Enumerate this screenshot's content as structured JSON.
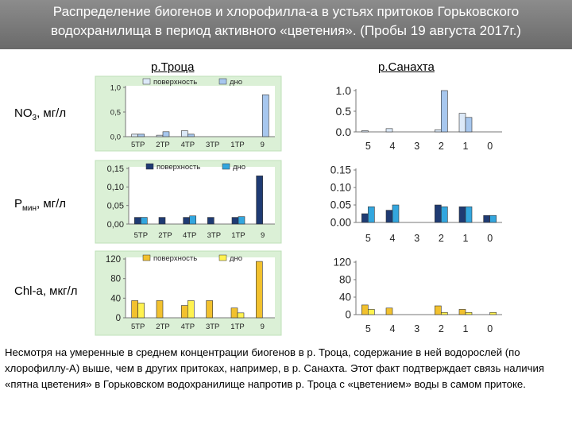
{
  "header": {
    "title_line1": "Распределение биогенов и хлорофилла-а в устьях притоков Горьковского",
    "title_line2": "водохранилища в период активного «цветения». (Пробы 19 августа 2017г.)"
  },
  "rivers": {
    "left": "р.Троца",
    "right": "р.Санахта"
  },
  "rows": {
    "no3": {
      "main": "NO",
      "sub": "3",
      "unit": ", мг/л"
    },
    "pmin": {
      "main": "P",
      "sub": "мин",
      "unit": ", мг/л"
    },
    "chla": {
      "main": "Chl-a, мкг/л"
    }
  },
  "caption": "Несмотря на умеренные в среднем концентрации биогенов в р. Троца, содержание в ней водорослей (по хлорофиллу-А) выше, чем в других притоках, например, в р. Санахта. Этот факт подтверждает связь наличия «пятна цветения» в Горьковском водохранилище напротив р. Троца с «цветением» воды в самом притоке.",
  "colors": {
    "no3": {
      "surface": "#dce9f8",
      "bottom": "#a7c7ee"
    },
    "pmin": {
      "surface": "#1f3b73",
      "bottom": "#33a6de"
    },
    "chla": {
      "surface": "#f2c12e",
      "bottom": "#fff24f"
    },
    "troca_panel_bg": "#dbf0d6",
    "troca_panel_border": "#bfe0b8"
  },
  "chart_data": [
    {
      "id": "no3-troca",
      "type": "bar",
      "river": "р.Троца",
      "categories": [
        "5ТР",
        "2ТР",
        "4ТР",
        "3ТР",
        "1ТР",
        "9"
      ],
      "series": [
        {
          "name": "поверхность",
          "values": [
            0.05,
            0.03,
            0.12,
            0.0,
            0.0,
            0.0
          ]
        },
        {
          "name": "дно",
          "values": [
            0.05,
            0.1,
            0.05,
            0.0,
            0.0,
            0.85
          ]
        }
      ],
      "ylim": [
        0,
        1.0
      ],
      "yticks": [
        "0,0",
        "0,5",
        "1,0"
      ],
      "ytick_values": [
        0,
        0.5,
        1.0
      ],
      "legend": true,
      "legend_position": "top",
      "background": "panel"
    },
    {
      "id": "no3-sanakhta",
      "type": "bar",
      "river": "р.Санахта",
      "categories": [
        "5",
        "4",
        "3",
        "2",
        "1",
        "0"
      ],
      "series": [
        {
          "values": [
            0.03,
            0.08,
            0.0,
            0.05,
            0.45,
            0.0
          ]
        },
        {
          "values": [
            0.0,
            0.0,
            0.0,
            1.0,
            0.35,
            0.0
          ]
        }
      ],
      "ylim": [
        0,
        1.0
      ],
      "yticks": [
        "0.0",
        "0.5",
        "1.0"
      ],
      "ytick_values": [
        0,
        0.5,
        1.0
      ],
      "legend": false,
      "background": "none"
    },
    {
      "id": "pmin-troca",
      "type": "bar",
      "river": "р.Троца",
      "categories": [
        "5ТР",
        "2ТР",
        "4ТР",
        "3ТР",
        "1ТР",
        "9"
      ],
      "series": [
        {
          "name": "поверхность",
          "values": [
            0.018,
            0.018,
            0.018,
            0.018,
            0.018,
            0.13
          ]
        },
        {
          "name": "дно",
          "values": [
            0.018,
            0.0,
            0.022,
            0.0,
            0.02,
            0.0
          ]
        }
      ],
      "ylim": [
        0,
        0.15
      ],
      "yticks": [
        "0,00",
        "0,05",
        "0,10",
        "0,15"
      ],
      "ytick_values": [
        0,
        0.05,
        0.1,
        0.15
      ],
      "legend": true,
      "legend_position": "top",
      "background": "panel"
    },
    {
      "id": "pmin-sanakhta",
      "type": "bar",
      "river": "р.Санахта",
      "categories": [
        "5",
        "4",
        "3",
        "2",
        "1",
        "0"
      ],
      "series": [
        {
          "values": [
            0.025,
            0.035,
            0.0,
            0.05,
            0.045,
            0.02
          ]
        },
        {
          "values": [
            0.045,
            0.05,
            0.0,
            0.045,
            0.045,
            0.02
          ]
        }
      ],
      "ylim": [
        0,
        0.15
      ],
      "yticks": [
        "0.00",
        "0.05",
        "0.10",
        "0.15"
      ],
      "ytick_values": [
        0,
        0.05,
        0.1,
        0.15
      ],
      "legend": false,
      "background": "none"
    },
    {
      "id": "chla-troca",
      "type": "bar",
      "river": "р.Троца",
      "categories": [
        "5ТР",
        "2ТР",
        "4ТР",
        "3ТР",
        "1ТР",
        "9"
      ],
      "series": [
        {
          "name": "поверхность",
          "values": [
            35,
            35,
            25,
            35,
            20,
            115
          ]
        },
        {
          "name": "дно",
          "values": [
            30,
            0,
            35,
            0,
            10,
            0
          ]
        }
      ],
      "ylim": [
        0,
        120
      ],
      "yticks": [
        "0",
        "40",
        "80",
        "120"
      ],
      "ytick_values": [
        0,
        40,
        80,
        120
      ],
      "legend": true,
      "legend_position": "top",
      "background": "panel"
    },
    {
      "id": "chla-sanakhta",
      "type": "bar",
      "river": "р.Санахта",
      "categories": [
        "5",
        "4",
        "3",
        "2",
        "1",
        "0"
      ],
      "series": [
        {
          "values": [
            22,
            15,
            0,
            20,
            12,
            0
          ]
        },
        {
          "values": [
            12,
            0,
            0,
            5,
            5,
            5
          ]
        }
      ],
      "ylim": [
        0,
        120
      ],
      "yticks": [
        "0",
        "40",
        "80",
        "120"
      ],
      "ytick_values": [
        0,
        40,
        80,
        120
      ],
      "legend": false,
      "background": "none"
    }
  ]
}
